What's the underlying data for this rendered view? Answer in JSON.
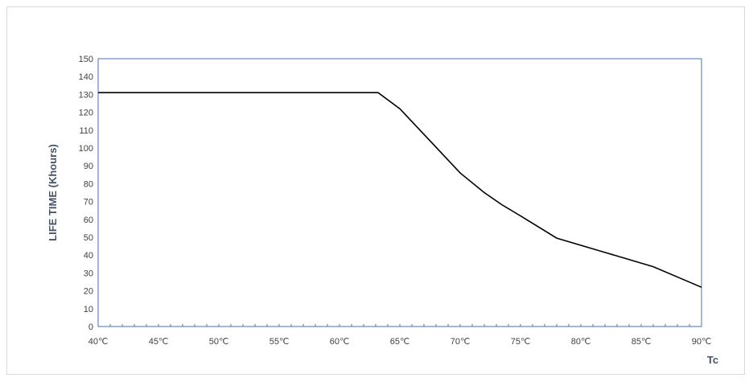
{
  "chart_data": {
    "type": "line",
    "title": "",
    "xlabel": "Tc",
    "ylabel": "LIFE TIME (Khours)",
    "xlim": [
      40,
      90
    ],
    "ylim": [
      0,
      150
    ],
    "y_ticks": [
      0,
      10,
      20,
      30,
      40,
      50,
      60,
      70,
      80,
      90,
      100,
      110,
      120,
      130,
      140,
      150
    ],
    "x_tick_labels": [
      "40℃",
      "45℃",
      "50℃",
      "55℃",
      "60℃",
      "65℃",
      "70℃",
      "75℃",
      "80℃",
      "85℃",
      "90℃"
    ],
    "x_tick_values": [
      40,
      45,
      50,
      55,
      60,
      65,
      70,
      75,
      80,
      85,
      90
    ],
    "grid": false,
    "legend": "none",
    "series": [
      {
        "x": [
          40,
          63.2,
          65,
          67.5,
          70,
          72,
          73.5,
          75,
          78,
          82,
          86,
          90
        ],
        "y": [
          131,
          131,
          122,
          104,
          86,
          75,
          68,
          62,
          49.5,
          41.5,
          33.5,
          22
        ]
      }
    ]
  },
  "colors": {
    "line": "#000000",
    "axis_frame": "#4472c4",
    "ylabel": "#44546a",
    "xlabel": "#44546a",
    "tick_text": "#404040"
  }
}
